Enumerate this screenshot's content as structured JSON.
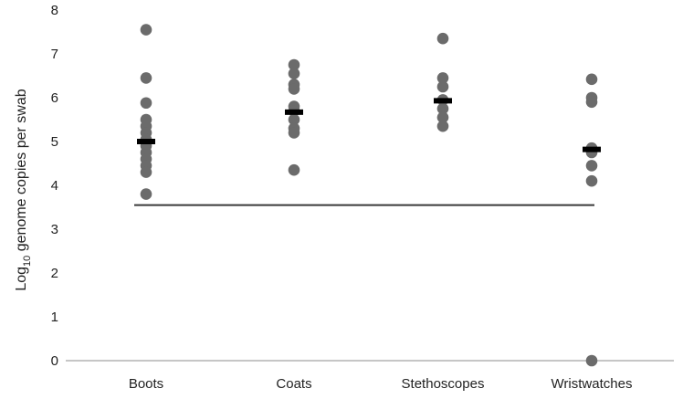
{
  "chart_data": {
    "type": "scatter",
    "title": "",
    "xlabel": "",
    "ylabel": {
      "prefix": "Log",
      "subscript": "10",
      "suffix": " genome copies per swab"
    },
    "ylim": [
      0,
      8
    ],
    "yticks": [
      0,
      1,
      2,
      3,
      4,
      5,
      6,
      7,
      8
    ],
    "grid": false,
    "legend": "none",
    "categories": [
      "Boots",
      "Coats",
      "Stethoscopes",
      "Wristwatches"
    ],
    "points": [
      [
        7.55,
        6.45,
        5.88,
        5.5,
        5.35,
        5.2,
        5.05,
        4.9,
        4.75,
        4.6,
        4.45,
        4.3,
        3.8
      ],
      [
        6.75,
        6.55,
        6.3,
        6.2,
        5.8,
        5.7,
        5.5,
        5.3,
        5.2,
        4.35
      ],
      [
        7.35,
        6.45,
        6.25,
        5.95,
        5.75,
        5.55,
        5.35
      ],
      [
        6.42,
        6.0,
        5.9,
        4.85,
        4.75,
        4.45,
        4.1,
        0.0
      ]
    ],
    "means": [
      5.0,
      5.67,
      5.93,
      4.82
    ],
    "lower_limit": 3.55,
    "colors": {
      "point": "#6b6b6b",
      "mean": "#000000",
      "limit_line": "#3a3a3a",
      "axis": "#8c8c8c"
    }
  }
}
